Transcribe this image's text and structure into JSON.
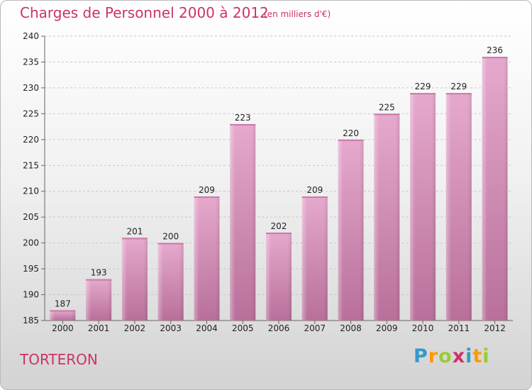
{
  "header": {
    "title": "Charges de Personnel 2000 à 2012",
    "subtitle": "(en milliers d'€)"
  },
  "footer": {
    "town": "TORTERON",
    "logo_letters": [
      {
        "ch": "P",
        "color": "#3399cc"
      },
      {
        "ch": "r",
        "color": "#ff9900"
      },
      {
        "ch": "o",
        "color": "#99cc33"
      },
      {
        "ch": "x",
        "color": "#cc3366"
      },
      {
        "ch": "i",
        "color": "#3399cc"
      },
      {
        "ch": "t",
        "color": "#ff9900"
      },
      {
        "ch": "i",
        "color": "#99cc33"
      }
    ]
  },
  "chart_data": {
    "type": "bar",
    "title": "Charges de Personnel 2000 à 2012",
    "categories": [
      "2000",
      "2001",
      "2002",
      "2003",
      "2004",
      "2005",
      "2006",
      "2007",
      "2008",
      "2009",
      "2010",
      "2011",
      "2012"
    ],
    "values": [
      187,
      193,
      201,
      200,
      209,
      223,
      202,
      209,
      220,
      225,
      229,
      229,
      236
    ],
    "ylim": [
      185,
      240
    ],
    "yticks": [
      185,
      190,
      195,
      200,
      205,
      210,
      215,
      220,
      225,
      230,
      235,
      240
    ],
    "grid": true,
    "bar_color": "#d98fb5",
    "accent_color": "#cc3366"
  }
}
